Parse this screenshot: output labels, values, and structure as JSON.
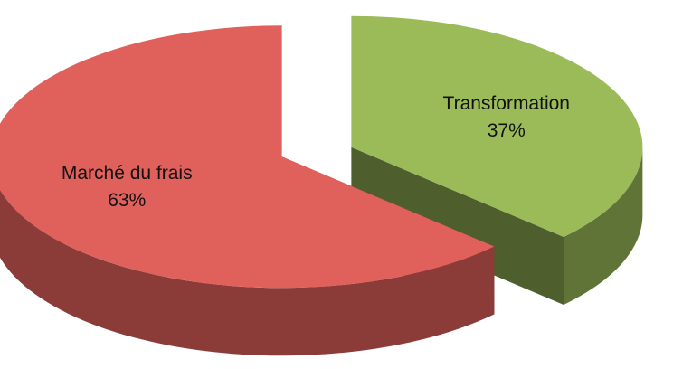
{
  "chart_data": {
    "type": "pie",
    "categories": [
      "Marché du frais",
      "Transformation"
    ],
    "values": [
      63,
      37
    ],
    "value_labels": [
      "63%",
      "37%"
    ],
    "colors": [
      "#e0605c",
      "#9bbb59"
    ]
  }
}
